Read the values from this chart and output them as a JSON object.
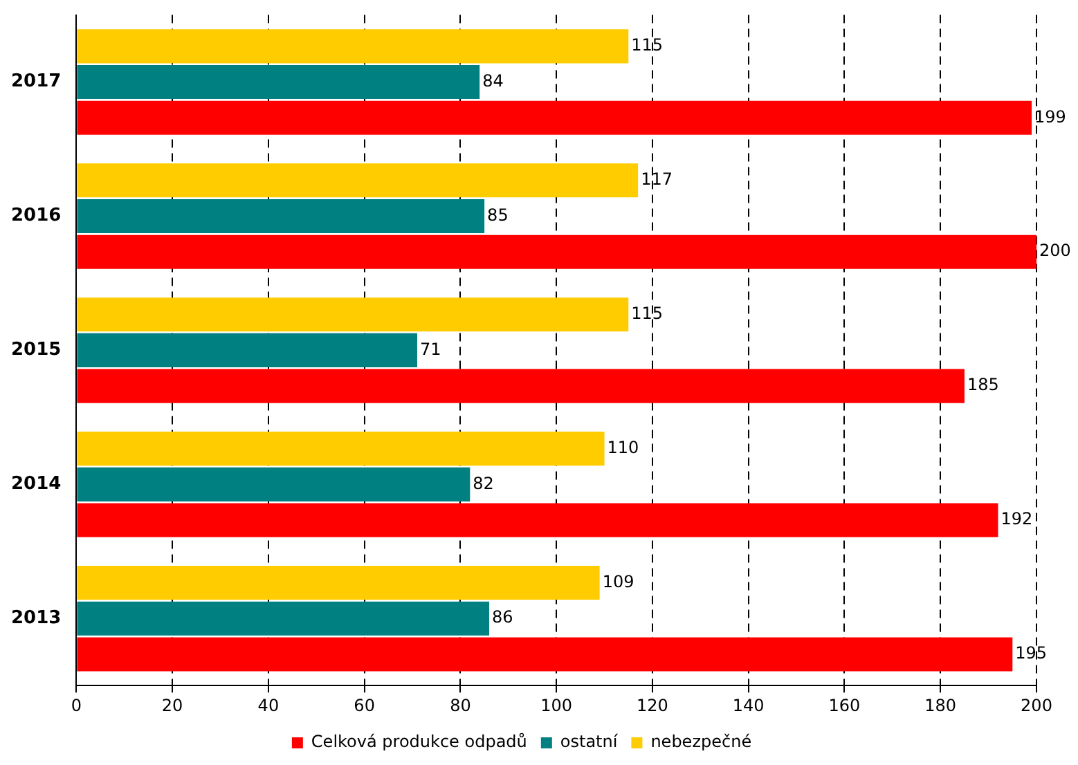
{
  "chart_data": {
    "type": "bar",
    "orientation": "horizontal",
    "categories": [
      "2017",
      "2016",
      "2015",
      "2014",
      "2013"
    ],
    "series": [
      {
        "name": "Celková produkce odpadů",
        "color": "#ff0000",
        "values": [
          199,
          200,
          185,
          192,
          195
        ]
      },
      {
        "name": "ostatní",
        "color": "#008080",
        "values": [
          84,
          85,
          71,
          82,
          86
        ]
      },
      {
        "name": "nebezpečné",
        "color": "#ffcc00",
        "values": [
          115,
          117,
          115,
          110,
          109
        ]
      }
    ],
    "xlim": [
      0,
      200
    ],
    "xticks": [
      0,
      20,
      40,
      60,
      80,
      100,
      120,
      140,
      160,
      180,
      200
    ],
    "grid": "x",
    "legend": "bottom",
    "data_labels": true
  }
}
